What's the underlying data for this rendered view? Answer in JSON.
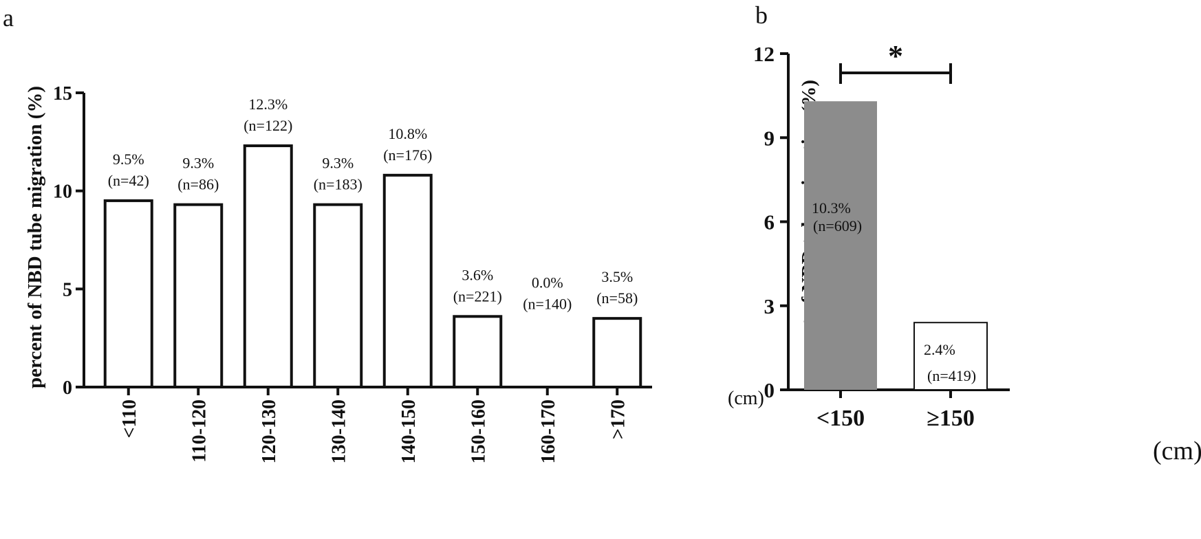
{
  "panel_labels": {
    "a": "a",
    "b": "b"
  },
  "unit_label_a": "(cm)",
  "unit_label_b": "(cm)",
  "colors": {
    "axis": "#111111",
    "bar_outline": "#111111",
    "bar_fill_a": "#ffffff",
    "bar_fill_b_first": "#8c8c8c",
    "bar_fill_b_second": "#ffffff"
  },
  "chart_data": [
    {
      "type": "bar",
      "ylabel": "percent of NBD tube migration (%)",
      "ylim": [
        0,
        15
      ],
      "yticks": [
        0,
        5,
        10,
        15
      ],
      "categories": [
        "<110",
        "110-120",
        "120-130",
        "130-140",
        "140-150",
        "150-160",
        "160-170",
        ">170"
      ],
      "values": [
        9.5,
        9.3,
        12.3,
        9.3,
        10.8,
        3.6,
        0.0,
        3.5
      ],
      "value_labels": [
        "9.5%",
        "9.3%",
        "12.3%",
        "9.3%",
        "10.8%",
        "3.6%",
        "0.0%",
        "3.5%"
      ],
      "n_labels": [
        "(n=42)",
        "(n=86)",
        "(n=122)",
        "(n=183)",
        "(n=176)",
        "(n=221)",
        "(n=140)",
        "(n=58)"
      ]
    },
    {
      "type": "bar",
      "ylabel": "percent of NBD tube migration (%)",
      "ylim": [
        0,
        12
      ],
      "yticks": [
        0,
        3,
        6,
        9,
        12
      ],
      "categories": [
        "<150",
        "≥150"
      ],
      "values": [
        10.3,
        2.4
      ],
      "value_labels": [
        "10.3%",
        "2.4%"
      ],
      "n_labels": [
        "(n=609)",
        "(n=419)"
      ],
      "significance": "*"
    }
  ]
}
